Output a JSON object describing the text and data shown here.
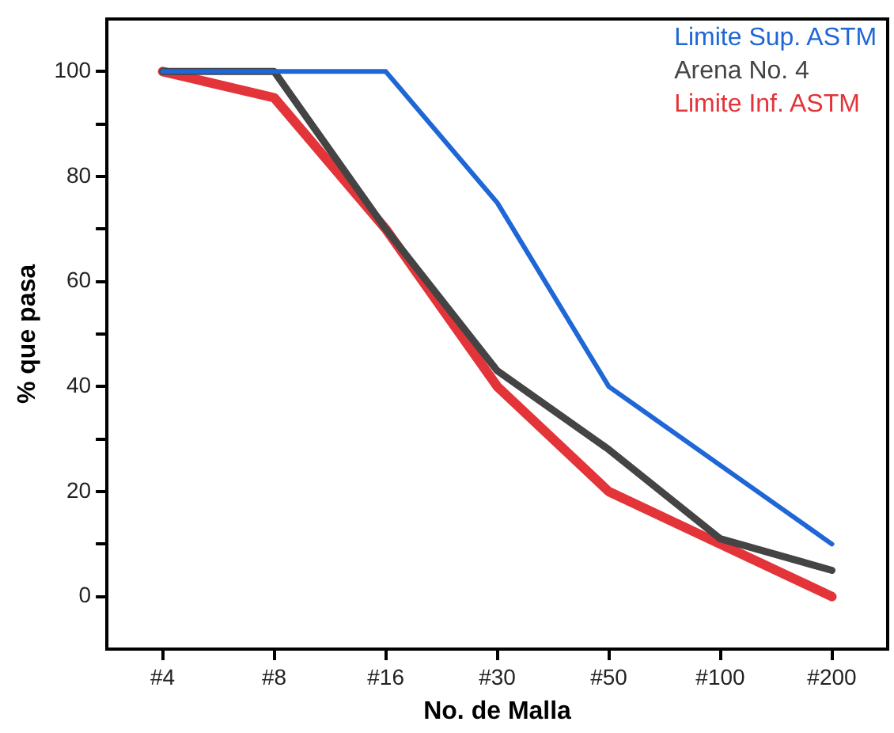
{
  "chart_data": {
    "type": "line",
    "xlabel": "No. de Malla",
    "ylabel": "% que pasa",
    "categories": [
      "#4",
      "#8",
      "#16",
      "#30",
      "#50",
      "#100",
      "#200"
    ],
    "series": [
      {
        "name": "Limite Sup. ASTM",
        "color": "#1f66d6",
        "values": [
          100,
          100,
          100,
          75,
          40,
          25,
          10
        ]
      },
      {
        "name": "Arena No. 4",
        "color": "#444444",
        "values": [
          100,
          100,
          70,
          43,
          28,
          11,
          5
        ]
      },
      {
        "name": "Limite Inf. ASTM",
        "color": "#e3343a",
        "values": [
          100,
          95,
          70,
          40,
          20,
          10,
          0
        ]
      }
    ],
    "ylim": [
      -10,
      110
    ],
    "yticks": [
      0,
      {
        "value": 10,
        "label": null
      },
      20,
      {
        "value": 30,
        "label": null
      },
      40,
      {
        "value": 50,
        "label": null
      },
      60,
      {
        "value": 70,
        "label": null
      },
      80,
      {
        "value": 90,
        "label": null
      },
      100
    ],
    "grid": false,
    "legend": "top right",
    "marker": "none",
    "line_style": "solid"
  }
}
